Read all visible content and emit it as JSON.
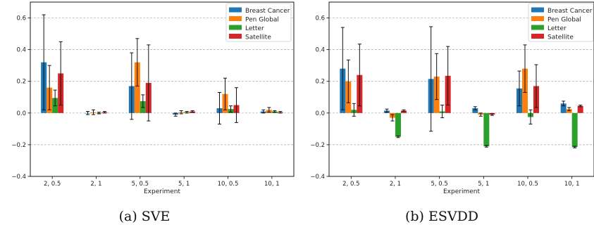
{
  "chart_data": [
    {
      "type": "bar",
      "caption": "(a) SVE",
      "xlabel": "Experiment",
      "ylabel": "",
      "ylim": [
        -0.4,
        0.7
      ],
      "yticks": [
        -0.4,
        -0.2,
        0.0,
        0.2,
        0.4,
        0.6
      ],
      "ytick_labels": [
        "−0.4",
        "−0.2",
        "0.0",
        "0.2",
        "0.4",
        "0.6"
      ],
      "grid": "y-dashed",
      "legend_position": "top-right",
      "categories": [
        "2, 0.5",
        "2, 1",
        "5, 0.5",
        "5, 1",
        "10, 0.5",
        "10, 1"
      ],
      "series": [
        {
          "name": "Breast Cancer",
          "color": "#1f77b4",
          "values": [
            0.32,
            0.0,
            0.17,
            -0.01,
            0.03,
            0.01
          ],
          "errors": [
            0.3,
            0.01,
            0.21,
            0.01,
            0.1,
            0.01
          ]
        },
        {
          "name": "Pen Global",
          "color": "#ff7f0e",
          "values": [
            0.16,
            0.005,
            0.32,
            0.005,
            0.12,
            0.02
          ],
          "errors": [
            0.14,
            0.015,
            0.15,
            0.01,
            0.1,
            0.015
          ]
        },
        {
          "name": "Letter",
          "color": "#2ca02c",
          "values": [
            0.095,
            0.0,
            0.075,
            0.005,
            0.025,
            0.01
          ],
          "errors": [
            0.05,
            0.005,
            0.04,
            0.005,
            0.02,
            0.005
          ]
        },
        {
          "name": "Satellite",
          "color": "#d62728",
          "values": [
            0.25,
            0.005,
            0.19,
            0.01,
            0.05,
            0.005
          ],
          "errors": [
            0.2,
            0.005,
            0.24,
            0.005,
            0.11,
            0.005
          ]
        }
      ]
    },
    {
      "type": "bar",
      "caption": "(b) ESVDD",
      "xlabel": "Experiment",
      "ylabel": "",
      "ylim": [
        -0.4,
        0.7
      ],
      "yticks": [
        -0.4,
        -0.2,
        0.0,
        0.2,
        0.4,
        0.6
      ],
      "ytick_labels": [
        "−0.4",
        "−0.2",
        "0.0",
        "0.2",
        "0.4",
        "0.6"
      ],
      "grid": "y-dashed",
      "legend_position": "top-right",
      "categories": [
        "2, 0.5",
        "2, 1",
        "5, 0.5",
        "5, 1",
        "10, 0.5",
        "10, 1"
      ],
      "series": [
        {
          "name": "Breast Cancer",
          "color": "#1f77b4",
          "values": [
            0.28,
            0.015,
            0.215,
            0.03,
            0.155,
            0.06
          ],
          "errors": [
            0.26,
            0.01,
            0.33,
            0.01,
            0.11,
            0.015
          ]
        },
        {
          "name": "Pen Global",
          "color": "#ff7f0e",
          "values": [
            0.2,
            -0.03,
            0.23,
            -0.01,
            0.28,
            0.025
          ],
          "errors": [
            0.135,
            0.02,
            0.145,
            0.01,
            0.15,
            0.01
          ]
        },
        {
          "name": "Letter",
          "color": "#2ca02c",
          "values": [
            0.02,
            -0.15,
            0.01,
            -0.21,
            -0.025,
            -0.215
          ],
          "errors": [
            0.04,
            0.005,
            0.04,
            0.005,
            0.045,
            0.005
          ]
        },
        {
          "name": "Satellite",
          "color": "#d62728",
          "values": [
            0.24,
            0.015,
            0.235,
            -0.01,
            0.17,
            0.045
          ],
          "errors": [
            0.195,
            0.005,
            0.185,
            0.005,
            0.135,
            0.005
          ]
        }
      ]
    }
  ]
}
